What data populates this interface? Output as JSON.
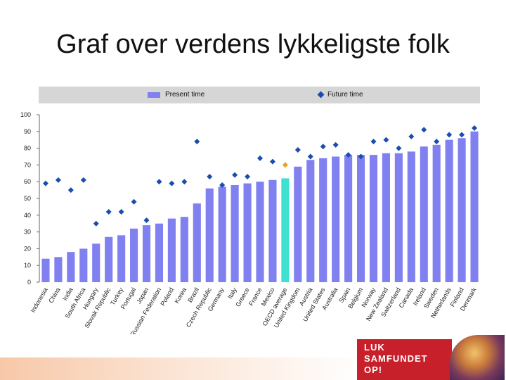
{
  "slide": {
    "title": "Graf over verdens lykkeligste folk"
  },
  "legend": {
    "present": "Present time",
    "future": "Future time"
  },
  "logo": {
    "lines": [
      "LUK",
      "SAMFUNDET",
      "OP!"
    ]
  },
  "colors": {
    "bar": "#8080f0",
    "highlight_bar": "#40e0d0",
    "marker": "#1a4db0",
    "highlight_marker": "#f0a020",
    "legend_bg": "#d6d6d6",
    "logo_bg": "#c8202a"
  },
  "chart_data": {
    "type": "bar",
    "title": "",
    "xlabel": "",
    "ylabel": "",
    "ylim": [
      0,
      100
    ],
    "yticks": [
      0,
      10,
      20,
      30,
      40,
      50,
      60,
      70,
      80,
      90,
      100
    ],
    "highlight_category": "OECD average",
    "categories": [
      "Indonesia",
      "China",
      "India",
      "South Africa",
      "Hungary",
      "Slovak Republic",
      "Turkey",
      "Portugal",
      "Japan",
      "Russian Federation",
      "Poland",
      "Korea",
      "Brazil",
      "Czech Republic",
      "Germany",
      "Italy",
      "Greece",
      "France",
      "Mexico",
      "OECD average",
      "United Kingdom",
      "Austria",
      "United States",
      "Australia",
      "Spain",
      "Belgium",
      "Norway",
      "New Zealand",
      "Switzerland",
      "Canada",
      "Ireland",
      "Sweden",
      "Netherlands",
      "Finland",
      "Denmark"
    ],
    "series": [
      {
        "name": "Present time",
        "kind": "bar",
        "values": [
          14,
          15,
          18,
          20,
          23,
          27,
          28,
          32,
          34,
          35,
          38,
          39,
          47,
          56,
          57,
          58,
          59,
          60,
          61,
          62,
          69,
          73,
          74,
          75,
          76,
          76,
          76,
          77,
          77,
          78,
          81,
          82,
          85,
          86,
          90
        ]
      },
      {
        "name": "Future time",
        "kind": "marker",
        "values": [
          59,
          61,
          55,
          61,
          35,
          42,
          42,
          48,
          37,
          60,
          59,
          60,
          84,
          63,
          58,
          64,
          63,
          74,
          72,
          70,
          79,
          75,
          81,
          82,
          76,
          75,
          84,
          85,
          80,
          87,
          91,
          84,
          88,
          88,
          92
        ]
      }
    ]
  }
}
